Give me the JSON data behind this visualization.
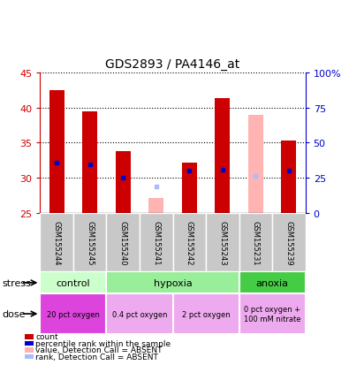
{
  "title": "GDS2893 / PA4146_at",
  "samples": [
    "GSM155244",
    "GSM155245",
    "GSM155240",
    "GSM155241",
    "GSM155242",
    "GSM155243",
    "GSM155231",
    "GSM155239"
  ],
  "count_values": [
    42.5,
    39.5,
    33.8,
    null,
    32.2,
    41.3,
    null,
    35.3
  ],
  "count_base": 25,
  "rank_values": [
    32.2,
    31.9,
    30.1,
    null,
    31.1,
    31.2,
    null,
    31.1
  ],
  "absent_count_values": [
    null,
    null,
    null,
    27.1,
    null,
    null,
    39.0,
    null
  ],
  "absent_rank_values": [
    null,
    null,
    null,
    28.8,
    null,
    null,
    30.3,
    null
  ],
  "ylim_left": [
    25,
    45
  ],
  "yticks_left": [
    25,
    30,
    35,
    40,
    45
  ],
  "yticks_right": [
    0,
    25,
    50,
    75,
    100
  ],
  "yticklabels_right": [
    "0",
    "25",
    "50",
    "75",
    "100%"
  ],
  "count_color": "#cc0000",
  "rank_color": "#0000cc",
  "absent_count_color": "#ffb3b3",
  "absent_rank_color": "#aabbff",
  "sample_bg_color": "#c8c8c8",
  "stress_groups": [
    {
      "label": "control",
      "samples": [
        0,
        1
      ],
      "color": "#ccffcc"
    },
    {
      "label": "hypoxia",
      "samples": [
        2,
        3,
        4,
        5
      ],
      "color": "#99ee99"
    },
    {
      "label": "anoxia",
      "samples": [
        6,
        7
      ],
      "color": "#44cc44"
    }
  ],
  "dose_groups": [
    {
      "label": "20 pct oxygen",
      "samples": [
        0,
        1
      ],
      "color": "#dd44dd"
    },
    {
      "label": "0.4 pct oxygen",
      "samples": [
        2,
        3
      ],
      "color": "#eeaaee"
    },
    {
      "label": "2 pct oxygen",
      "samples": [
        4,
        5
      ],
      "color": "#eeaaee"
    },
    {
      "label": "0 pct oxygen +\n100 mM nitrate",
      "samples": [
        6,
        7
      ],
      "color": "#eeaaee"
    }
  ],
  "legend_items": [
    {
      "label": "count",
      "color": "#cc0000",
      "marker": "s"
    },
    {
      "label": "percentile rank within the sample",
      "color": "#0000cc",
      "marker": "s"
    },
    {
      "label": "value, Detection Call = ABSENT",
      "color": "#ffb3b3",
      "marker": "s"
    },
    {
      "label": "rank, Detection Call = ABSENT",
      "color": "#aabbff",
      "marker": "s"
    }
  ],
  "stress_label": "stress",
  "dose_label": "dose",
  "left_axis_color": "#cc0000",
  "right_axis_color": "#0000cc",
  "bar_width": 0.45
}
